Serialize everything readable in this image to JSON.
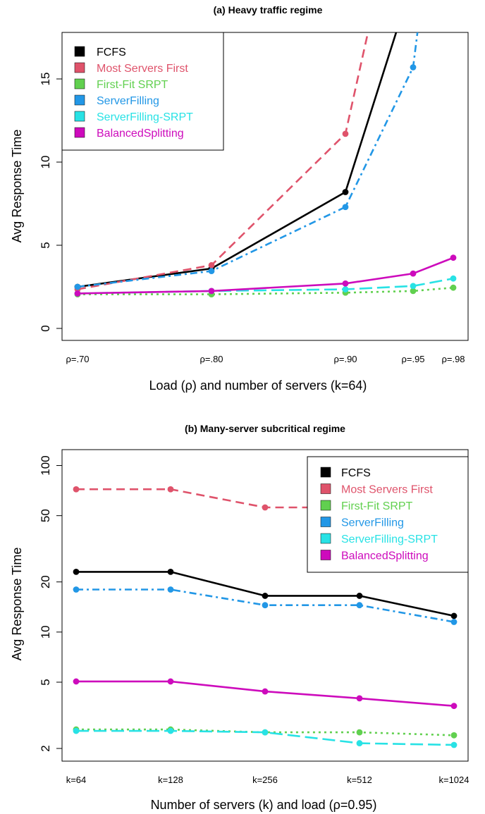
{
  "chart_data": [
    {
      "type": "line",
      "title": "(a) Heavy traffic regime",
      "xlabel": "Load (ρ) and number of servers (k=64)",
      "ylabel": "Avg Response Time",
      "x": [
        0.7,
        0.8,
        0.9,
        0.95,
        0.98
      ],
      "tick_labels": [
        "ρ=.70",
        "ρ=.80",
        "ρ=.90",
        "ρ=.95",
        "ρ=.98"
      ],
      "xlim": [
        0.7,
        0.98
      ],
      "ylim": [
        0,
        17.5
      ],
      "yscale": "linear",
      "yticks": [
        0,
        5,
        10,
        15
      ],
      "legend_position": "top-left",
      "series": [
        {
          "name": "FCFS",
          "color": "#000000",
          "dash": "solid",
          "values": [
            2.5,
            3.6,
            8.2,
            21.0,
            null
          ]
        },
        {
          "name": "Most Servers First",
          "color": "#df536b",
          "dash": "dashed",
          "values": [
            2.35,
            3.8,
            11.7,
            30.0,
            null
          ]
        },
        {
          "name": "First-Fit SRPT",
          "color": "#61d04f",
          "dash": "dotted",
          "values": [
            2.05,
            2.05,
            2.15,
            2.25,
            2.45
          ]
        },
        {
          "name": "ServerFilling",
          "color": "#2297e6",
          "dash": "dashdot",
          "values": [
            2.5,
            3.45,
            7.3,
            15.7,
            35.0
          ]
        },
        {
          "name": "ServerFilling-SRPT",
          "color": "#28e2e5",
          "dash": "longdash",
          "values": [
            2.1,
            2.25,
            2.35,
            2.55,
            3.0
          ]
        },
        {
          "name": "BalancedSplitting",
          "color": "#cd0bbc",
          "dash": "solid",
          "values": [
            2.1,
            2.25,
            2.7,
            3.3,
            4.25
          ]
        }
      ]
    },
    {
      "type": "line",
      "title": "(b) Many-server subcritical regime",
      "xlabel": "Number of servers (k) and load (ρ=0.95)",
      "ylabel": "Avg Response Time",
      "x": [
        64,
        128,
        256,
        512,
        1024
      ],
      "tick_labels": [
        "k=64",
        "k=128",
        "k=256",
        "k=512",
        "k=1024"
      ],
      "ylim": [
        1.8,
        105
      ],
      "yscale": "log",
      "yticks": [
        2,
        5,
        10,
        20,
        50,
        100
      ],
      "legend_position": "top-right",
      "series": [
        {
          "name": "FCFS",
          "color": "#000000",
          "dash": "solid",
          "values": [
            23,
            23,
            16.5,
            16.5,
            12.5
          ]
        },
        {
          "name": "Most Servers First",
          "color": "#df536b",
          "dash": "dashed",
          "values": [
            72,
            72,
            56,
            56,
            56
          ]
        },
        {
          "name": "First-Fit SRPT",
          "color": "#61d04f",
          "dash": "dotted",
          "values": [
            2.6,
            2.6,
            2.5,
            2.5,
            2.4
          ]
        },
        {
          "name": "ServerFilling",
          "color": "#2297e6",
          "dash": "dashdot",
          "values": [
            18,
            18,
            14.5,
            14.5,
            11.5
          ]
        },
        {
          "name": "ServerFilling-SRPT",
          "color": "#28e2e5",
          "dash": "longdash",
          "values": [
            2.55,
            2.55,
            2.5,
            2.15,
            2.1
          ]
        },
        {
          "name": "BalancedSplitting",
          "color": "#cd0bbc",
          "dash": "solid",
          "values": [
            5.05,
            5.05,
            4.4,
            4.0,
            3.6
          ]
        }
      ]
    }
  ]
}
